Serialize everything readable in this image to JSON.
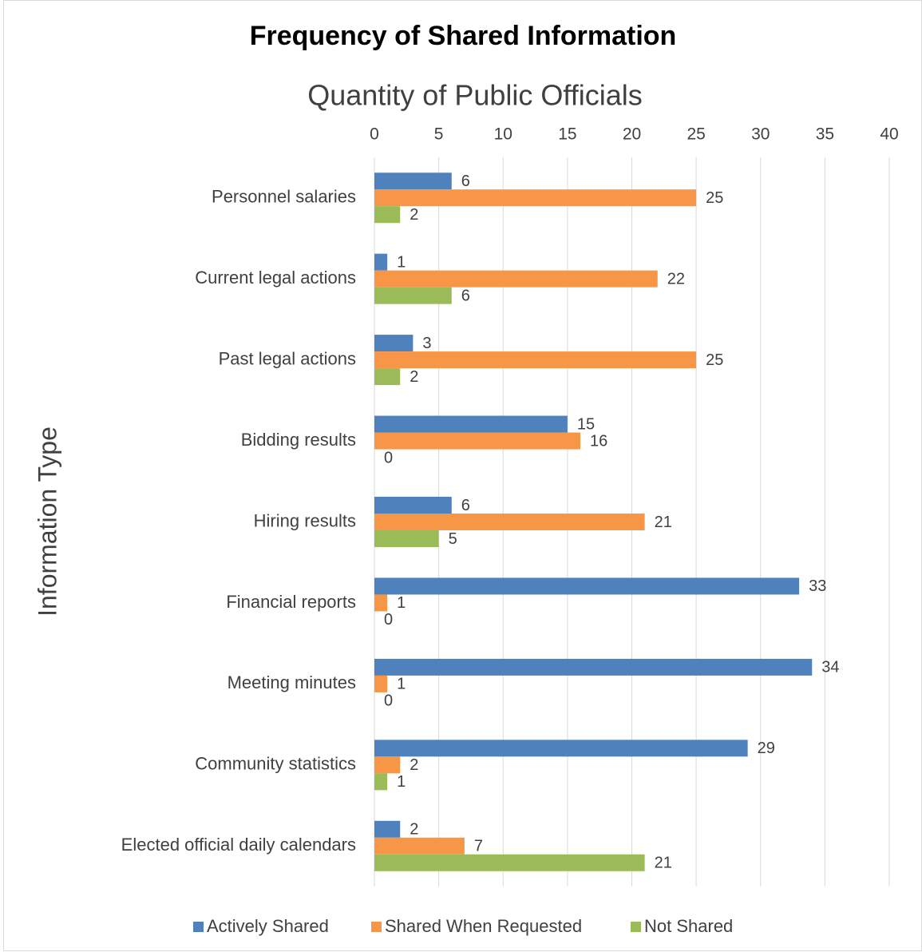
{
  "chart_data": {
    "type": "bar",
    "orientation": "horizontal",
    "title": "Frequency of Shared Information",
    "x_axis_label": "Quantity of Public Officials",
    "y_axis_label": "Information Type",
    "categories": [
      "Personnel salaries",
      "Current legal actions",
      "Past legal actions",
      "Bidding results",
      "Hiring results",
      "Financial reports",
      "Meeting minutes",
      "Community statistics",
      "Elected official daily calendars"
    ],
    "series": [
      {
        "name": "Actively Shared",
        "color": "#4f81bd",
        "values": [
          6,
          1,
          3,
          15,
          6,
          33,
          34,
          29,
          2
        ]
      },
      {
        "name": "Shared When Requested",
        "color": "#f79646",
        "values": [
          25,
          22,
          25,
          16,
          21,
          1,
          1,
          2,
          7
        ]
      },
      {
        "name": "Not Shared",
        "color": "#9bbb59",
        "values": [
          2,
          6,
          2,
          0,
          5,
          0,
          0,
          1,
          21
        ]
      }
    ],
    "xlim": [
      0,
      40
    ],
    "xticks": [
      0,
      5,
      10,
      15,
      20,
      25,
      30,
      35,
      40
    ],
    "grid": true,
    "legend": "bottom"
  }
}
